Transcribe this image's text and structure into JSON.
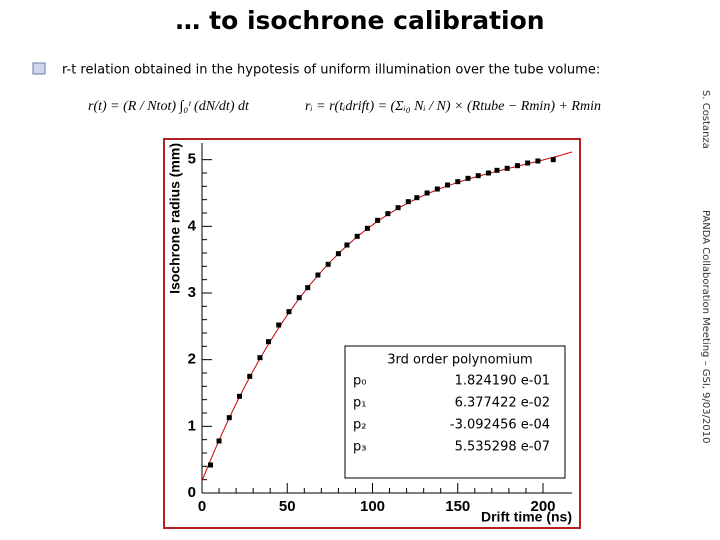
{
  "title": "… to isochrone calibration",
  "bullet": "r-t  relation obtained in the hypotesis of uniform illumination over the tube volume:",
  "formula_1": "r(t) = (R / Ntot) ∫₀ᵗ (dN/dt) dt",
  "formula_2": "rᵢ = r(tᵢdrift) = (Σᵢ₀ Nᵢ / N) × (Rtube − Rmin) + Rmin",
  "author": "S. Costanza",
  "footer": "PANDA Collaboration Meeting – GSI, 9/03/2010",
  "chart_data": {
    "type": "scatter",
    "x_label": "Drift time (ns)",
    "y_label": "Isochrone radius (mm)",
    "xlim": [
      0,
      217
    ],
    "ylim": [
      0,
      5.25
    ],
    "xticks": [
      0,
      50,
      100,
      150,
      200
    ],
    "yticks": [
      0,
      1,
      2,
      3,
      4,
      5
    ],
    "series": [
      {
        "color": "#000000",
        "x": [
          5,
          10,
          16,
          22,
          28,
          34,
          39,
          45,
          51,
          57,
          62,
          68,
          74,
          80,
          85,
          91,
          97,
          103,
          109,
          115,
          121,
          126,
          132,
          138,
          144,
          150,
          156,
          162,
          168,
          173,
          179,
          185,
          191,
          197,
          206
        ],
        "values": [
          0.42,
          0.78,
          1.13,
          1.45,
          1.75,
          2.03,
          2.27,
          2.52,
          2.72,
          2.93,
          3.08,
          3.27,
          3.43,
          3.59,
          3.72,
          3.85,
          3.97,
          4.09,
          4.19,
          4.28,
          4.37,
          4.43,
          4.5,
          4.56,
          4.62,
          4.67,
          4.72,
          4.76,
          4.8,
          4.84,
          4.87,
          4.91,
          4.95,
          4.98,
          5.0
        ]
      }
    ],
    "fit": {
      "label": "3rd order polynomium",
      "color": "#cc0000",
      "params": [
        {
          "name": "p₀",
          "value": {
            "value": 0.182419,
            "label": "1.824190 e-01"
          }
        },
        {
          "name": "p₁",
          "value": {
            "value": 0.06377422,
            "label": "6.377422 e-02"
          }
        },
        {
          "name": "p₂",
          "value": {
            "value": -0.0003092456,
            "label": "-3.092456 e-04"
          }
        },
        {
          "name": "p₃",
          "value": {
            "value": 5.535298e-07,
            "label": "5.535298 e-07"
          }
        }
      ]
    }
  }
}
